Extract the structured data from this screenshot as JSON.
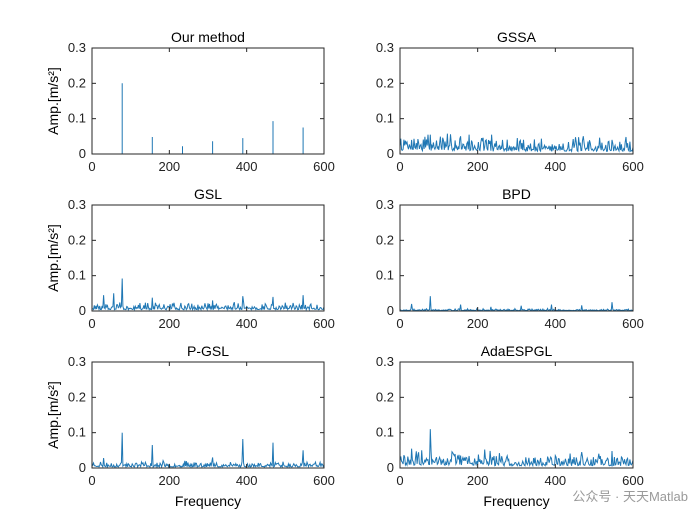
{
  "chart_data": [
    {
      "type": "line",
      "title": "Our method",
      "xlabel": "",
      "ylabel": "Amp.[m/s²]",
      "xlim": [
        0,
        600
      ],
      "ylim": [
        0,
        0.3
      ],
      "xticks": [
        "0",
        "200",
        "400",
        "600"
      ],
      "yticks": [
        "0",
        "0.1",
        "0.2",
        "0.3"
      ],
      "noise": 0.0,
      "seed": 1,
      "peaks": [
        [
          78,
          0.2
        ],
        [
          156,
          0.048
        ],
        [
          234,
          0.022
        ],
        [
          312,
          0.036
        ],
        [
          390,
          0.045
        ],
        [
          468,
          0.093
        ],
        [
          546,
          0.075
        ]
      ]
    },
    {
      "type": "line",
      "title": "GSSA",
      "xlabel": "",
      "ylabel": "",
      "xlim": [
        0,
        600
      ],
      "ylim": [
        0,
        0.3
      ],
      "xticks": [
        "0",
        "200",
        "400",
        "600"
      ],
      "yticks": [
        "0",
        "0.1",
        "0.2",
        "0.3"
      ],
      "noise": 0.03,
      "seed": 7,
      "peaks": [
        [
          30,
          0.04
        ],
        [
          78,
          0.055
        ],
        [
          156,
          0.05
        ],
        [
          210,
          0.045
        ],
        [
          546,
          0.04
        ]
      ]
    },
    {
      "type": "line",
      "title": "GSL",
      "xlabel": "",
      "ylabel": "Amp.[m/s²]",
      "xlim": [
        0,
        600
      ],
      "ylim": [
        0,
        0.3
      ],
      "xticks": [
        "0",
        "200",
        "400",
        "600"
      ],
      "yticks": [
        "0",
        "0.1",
        "0.2",
        "0.3"
      ],
      "noise": 0.015,
      "seed": 13,
      "peaks": [
        [
          30,
          0.045
        ],
        [
          55,
          0.05
        ],
        [
          78,
          0.092
        ],
        [
          156,
          0.038
        ],
        [
          312,
          0.03
        ],
        [
          390,
          0.042
        ],
        [
          468,
          0.04
        ],
        [
          546,
          0.045
        ]
      ]
    },
    {
      "type": "line",
      "title": "BPD",
      "xlabel": "",
      "ylabel": "",
      "xlim": [
        0,
        600
      ],
      "ylim": [
        0,
        0.3
      ],
      "xticks": [
        "0",
        "200",
        "400",
        "600"
      ],
      "yticks": [
        "0",
        "0.1",
        "0.2",
        "0.3"
      ],
      "noise": 0.004,
      "seed": 19,
      "peaks": [
        [
          30,
          0.02
        ],
        [
          78,
          0.042
        ],
        [
          156,
          0.018
        ],
        [
          234,
          0.012
        ],
        [
          312,
          0.015
        ],
        [
          390,
          0.018
        ],
        [
          468,
          0.016
        ],
        [
          546,
          0.025
        ]
      ]
    },
    {
      "type": "line",
      "title": "P-GSL",
      "xlabel": "Frequency",
      "ylabel": "Amp.[m/s²]",
      "xlim": [
        0,
        600
      ],
      "ylim": [
        0,
        0.3
      ],
      "xticks": [
        "0",
        "200",
        "400",
        "600"
      ],
      "yticks": [
        "0",
        "0.1",
        "0.2",
        "0.3"
      ],
      "noise": 0.012,
      "seed": 23,
      "peaks": [
        [
          30,
          0.028
        ],
        [
          78,
          0.1
        ],
        [
          156,
          0.065
        ],
        [
          312,
          0.03
        ],
        [
          390,
          0.082
        ],
        [
          468,
          0.072
        ],
        [
          546,
          0.05
        ]
      ]
    },
    {
      "type": "line",
      "title": "AdaESPGL",
      "xlabel": "Frequency",
      "ylabel": "",
      "xlim": [
        0,
        600
      ],
      "ylim": [
        0,
        0.3
      ],
      "xticks": [
        "0",
        "200",
        "400",
        "600"
      ],
      "yticks": [
        "0",
        "0.1",
        "0.2",
        "0.3"
      ],
      "noise": 0.025,
      "seed": 29,
      "peaks": [
        [
          30,
          0.055
        ],
        [
          55,
          0.05
        ],
        [
          78,
          0.11
        ],
        [
          156,
          0.035
        ],
        [
          468,
          0.045
        ],
        [
          546,
          0.048
        ]
      ]
    }
  ],
  "watermark": "公众号 · 天天Matlab"
}
